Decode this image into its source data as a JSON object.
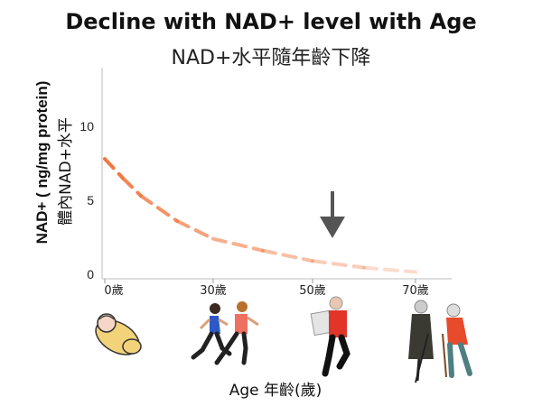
{
  "chart_data": {
    "type": "line",
    "title": "Decline with NAD+ level with Age",
    "subtitle": "NAD+水平隨年齡下降",
    "ylabel": "NAD+ ( ng/mg protein)",
    "ylabel_zh": "體內NAD+水平",
    "xlabel": "Age 年齡(歲)",
    "x_tick_labels": [
      "0歲",
      "30歲",
      "50歲",
      "70歲"
    ],
    "y_tick_labels": [
      "0",
      "5",
      "10"
    ],
    "ylim": [
      0,
      14
    ],
    "grid": false,
    "series": [
      {
        "color": "#f07840",
        "style": "dashed",
        "points": [
          {
            "x": 0,
            "y": 7.8
          },
          {
            "x": 5,
            "y": 6.5
          },
          {
            "x": 10,
            "y": 5.3
          },
          {
            "x": 20,
            "y": 3.6
          },
          {
            "x": 30,
            "y": 2.4
          },
          {
            "x": 40,
            "y": 1.6
          },
          {
            "x": 50,
            "y": 0.9
          },
          {
            "x": 60,
            "y": 0.45
          },
          {
            "x": 70,
            "y": 0.15
          }
        ]
      }
    ],
    "annotation": "downward-arrow"
  }
}
